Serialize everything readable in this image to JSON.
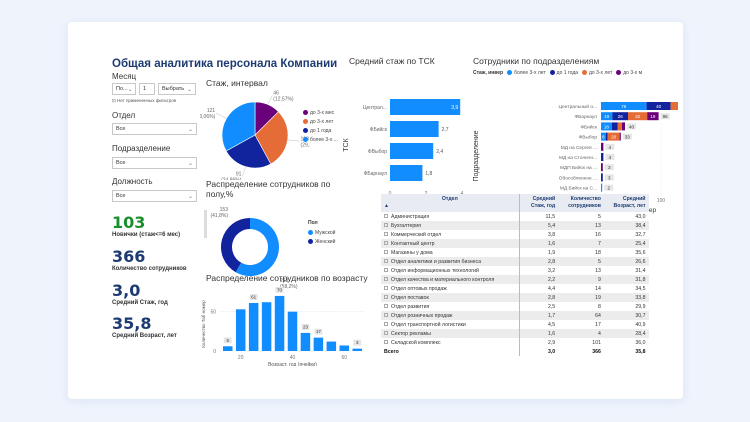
{
  "dashboard": {
    "title": "Общая аналитика персонала Компании"
  },
  "filters": {
    "month_label": "Месяц",
    "month_period": "По...",
    "month_count": "1",
    "month_select": "Выбрать",
    "month_note": "Нет примененных фильтров",
    "department_label": "Отдел",
    "department_value": "Все",
    "subdivision_label": "Подразделение",
    "subdivision_value": "Все",
    "position_label": "Должность",
    "position_value": "Все"
  },
  "kpis": [
    {
      "value": "103",
      "label": "Новички (стаж<=6 мес)",
      "color": "#1a8f2e"
    },
    {
      "value": "366",
      "label": "Количество сотрудников",
      "color": "#1d3b72"
    },
    {
      "value": "3,0",
      "label": "Средний Стаж, год",
      "color": "#1d3b72"
    },
    {
      "value": "35,8",
      "label": "Средний Возраст, лет",
      "color": "#1d3b72"
    }
  ],
  "colors": {
    "light_blue": "#118dff",
    "dark_blue": "#12239e",
    "orange": "#e66c37",
    "purple": "#6b007b",
    "title_navy": "#1d3b72"
  },
  "chart_data": [
    {
      "id": "tenure_pie",
      "type": "pie",
      "title": "Стаж, интервал",
      "slices": [
        {
          "name": "до 3-х мес",
          "value": 46,
          "label": "46",
          "pct_label": "(12,57%)",
          "color": "#6b007b"
        },
        {
          "name": "до 3-х лет",
          "value": 108,
          "label": "108",
          "pct_label": "(29,...)",
          "color": "#e66c37"
        },
        {
          "name": "до 1 года",
          "value": 91,
          "label": "91",
          "pct_label": "(24,86%)",
          "color": "#12239e"
        },
        {
          "name": "более 3-х ...",
          "value": 121,
          "label": "121",
          "pct_label": "(33,06%)",
          "color": "#118dff"
        }
      ]
    },
    {
      "id": "gender_donut",
      "type": "pie",
      "title": "Распределение сотрудников по полу,%",
      "legend_title": "Пол",
      "slices": [
        {
          "name": "Мужской",
          "value": 213,
          "label": "213",
          "pct_label": "(58,2%)",
          "color": "#118dff"
        },
        {
          "name": "Женский",
          "value": 153,
          "label": "153",
          "pct_label": "(41,8%)",
          "color": "#12239e"
        }
      ]
    },
    {
      "id": "age_hist",
      "type": "bar",
      "title": "Распределение сотрудников по возрасту",
      "xlabel": "Возраст, год (ячейки)",
      "ylabel": "Количество Таб номер",
      "x": [
        15,
        20,
        25,
        30,
        35,
        40,
        45,
        50,
        55,
        60,
        65
      ],
      "values": [
        6,
        53,
        61,
        62,
        70,
        50,
        23,
        17,
        12,
        7,
        3
      ],
      "data_labels": {
        "0": "6",
        "2": "61",
        "4": "70",
        "6": "23",
        "7": "17",
        "10": "3"
      },
      "xticks": [
        20,
        40,
        60
      ],
      "yticks": [
        0,
        50
      ],
      "xlim": [
        12,
        68
      ],
      "ylim": [
        0,
        75
      ],
      "grid": true
    },
    {
      "id": "tenure_by_tsk",
      "type": "bar",
      "orientation": "horizontal",
      "title": "Средний стаж по ТСК",
      "xlabel": "Средний стаж",
      "ylabel": "ТСК",
      "categories": [
        "Централ...",
        "ФБийск",
        "ФВыбор",
        "ФБарнаул"
      ],
      "values": [
        3.9,
        2.7,
        2.4,
        1.8
      ],
      "value_labels": [
        "3,9",
        "2,7",
        "2,4",
        "1,8"
      ],
      "xticks": [
        0,
        2,
        4
      ],
      "xlim": [
        0,
        4
      ]
    },
    {
      "id": "staff_by_subdivision",
      "type": "bar",
      "orientation": "horizontal",
      "stacked": true,
      "title": "Сотрудники по подразделениям",
      "legend_title": "Стаж, инвер",
      "xlabel": "Количество Таб. номер",
      "ylabel": "Подразделение",
      "categories": [
        "Центральный о...",
        "ФБарнаул",
        "ФБийск",
        "ФВыбор",
        "МД на Сергея ...",
        "МД на Столичн...",
        "МДП Бийск на ...",
        "Обособленное ...",
        "МД Бийск на С..."
      ],
      "series": [
        {
          "name": "более 3-х лет",
          "color": "#118dff",
          "values": [
            76,
            19,
            18,
            8,
            0,
            0,
            0,
            0,
            2
          ]
        },
        {
          "name": "до 1 года",
          "color": "#12239e",
          "values": [
            40,
            26,
            10,
            3,
            0,
            4,
            0,
            3,
            0
          ]
        },
        {
          "name": "до 3-х лет",
          "color": "#e66c37",
          "values": [
            46,
            32,
            7,
            20,
            0,
            0,
            0,
            0,
            0
          ]
        },
        {
          "name": "до 3-х м",
          "color": "#6b007b",
          "values": [
            14,
            19,
            5,
            2,
            4,
            0,
            3,
            0,
            0
          ]
        }
      ],
      "segment_labels": [
        [
          "76",
          "40",
          "46",
          "14"
        ],
        [
          "19",
          "26",
          "32",
          "19"
        ],
        [
          "18",
          "",
          "",
          ""
        ],
        [
          "8",
          "",
          "20",
          ""
        ],
        [
          "",
          "",
          "",
          ""
        ],
        [
          "",
          "",
          "",
          ""
        ],
        [
          "",
          "",
          "",
          ""
        ],
        [
          "",
          "",
          "",
          ""
        ],
        [
          "",
          "",
          "",
          ""
        ]
      ],
      "totals": [
        "176",
        "96",
        "40",
        "33",
        "4",
        "4",
        "3",
        "3",
        "2"
      ],
      "xticks": [
        0,
        100
      ],
      "xlim": [
        0,
        180
      ]
    }
  ],
  "table": {
    "columns": [
      "Отдел",
      "Средний Стаж, год",
      "Количество сотрудников",
      "Средний Возраст, лет"
    ],
    "rows": [
      [
        "Администрация",
        "11,5",
        "5",
        "43,0"
      ],
      [
        "Бухгалтерия",
        "5,4",
        "13",
        "38,4"
      ],
      [
        "Коммерческий отдел",
        "3,8",
        "16",
        "32,7"
      ],
      [
        "Контактный центр",
        "1,6",
        "7",
        "25,4"
      ],
      [
        "Магазины у дома",
        "1,9",
        "18",
        "35,6"
      ],
      [
        "Отдел аналитики и развития бизнеса",
        "2,8",
        "5",
        "26,6"
      ],
      [
        "Отдел информационных технологий",
        "3,2",
        "13",
        "31,4"
      ],
      [
        "Отдел качества и материального контроля",
        "2,2",
        "9",
        "31,8"
      ],
      [
        "Отдел оптовых продаж",
        "4,4",
        "14",
        "34,5"
      ],
      [
        "Отдел поставок",
        "2,8",
        "19",
        "33,8"
      ],
      [
        "Отдел развития",
        "2,5",
        "8",
        "29,9"
      ],
      [
        "Отдел розничных продаж",
        "1,7",
        "64",
        "30,7"
      ],
      [
        "Отдел транспортной логистики",
        "4,5",
        "17",
        "40,9"
      ],
      [
        "Сектор рекламы",
        "1,6",
        "4",
        "28,4"
      ],
      [
        "Складской комплекс",
        "2,9",
        "101",
        "36,0"
      ]
    ],
    "total": [
      "Всего",
      "3,0",
      "366",
      "35,8"
    ]
  }
}
